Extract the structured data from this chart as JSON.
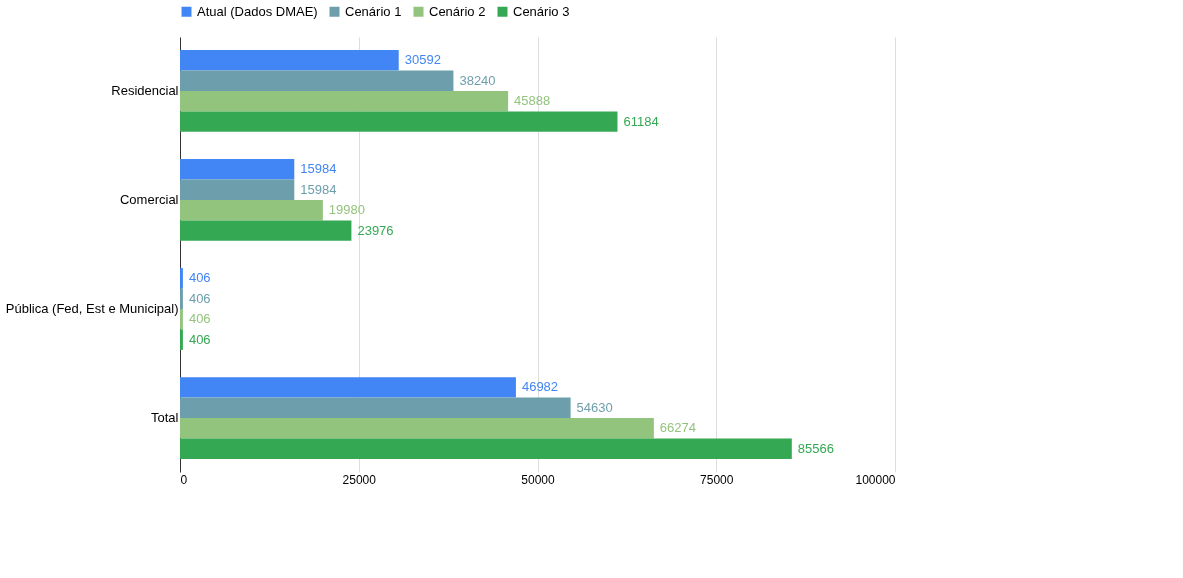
{
  "chart_data": {
    "type": "bar",
    "orientation": "horizontal",
    "categories": [
      "Residencial",
      "Comercial",
      "Pública (Fed, Est e Municipal)",
      "Total"
    ],
    "series": [
      {
        "name": "Atual (Dados DMAE)",
        "color": "#4285f4",
        "values": [
          30592,
          15984,
          406,
          46982
        ]
      },
      {
        "name": "Cenário 1",
        "color": "#6d9eab",
        "values": [
          38240,
          15984,
          406,
          54630
        ]
      },
      {
        "name": "Cenário 2",
        "color": "#93c47d",
        "values": [
          45888,
          19980,
          406,
          66274
        ]
      },
      {
        "name": "Cenário 3",
        "color": "#34a853",
        "values": [
          61184,
          23976,
          406,
          85566
        ]
      }
    ],
    "xlim": [
      0,
      100000
    ],
    "xticks": [
      0,
      25000,
      50000,
      75000,
      100000
    ],
    "grid": "x",
    "legend": "top",
    "data_labels": true
  }
}
